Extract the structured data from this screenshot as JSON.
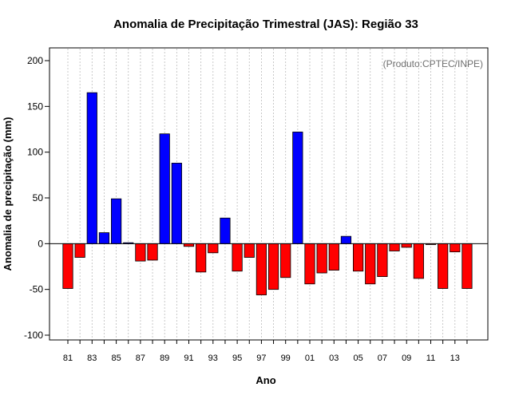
{
  "chart_data": {
    "type": "bar",
    "title": "Anomalia de Precipitação Trimestral (JAS): Região 33",
    "xlabel": "Ano",
    "ylabel": "Anomalia de precipitação (mm)",
    "annotation": "(Produto:CPTEC/INPE)",
    "ylim": [
      -100,
      200
    ],
    "yticks": [
      -100,
      -50,
      0,
      50,
      100,
      150,
      200
    ],
    "xtick_labels": [
      "81",
      "83",
      "85",
      "87",
      "89",
      "91",
      "93",
      "95",
      "97",
      "99",
      "01",
      "03",
      "05",
      "07",
      "09",
      "11",
      "13"
    ],
    "grid": "vertical dotted",
    "categories": [
      "1981",
      "1982",
      "1983",
      "1984",
      "1985",
      "1986",
      "1987",
      "1988",
      "1989",
      "1990",
      "1991",
      "1992",
      "1993",
      "1994",
      "1995",
      "1996",
      "1997",
      "1998",
      "1999",
      "2000",
      "2001",
      "2002",
      "2003",
      "2004",
      "2005",
      "2006",
      "2007",
      "2008",
      "2009",
      "2010",
      "2011",
      "2012",
      "2013",
      "2014"
    ],
    "values": [
      -49,
      -15,
      165,
      12,
      49,
      1,
      -19,
      -18,
      120,
      88,
      -3,
      -31,
      -10,
      28,
      -30,
      -15,
      -56,
      -50,
      -37,
      122,
      -44,
      -32,
      -29,
      8,
      -30,
      -44,
      -36,
      -8,
      -4,
      -38,
      -1,
      -49,
      -9,
      -49
    ],
    "colors": {
      "positive": "#0000ff",
      "negative": "#ff0000"
    }
  }
}
